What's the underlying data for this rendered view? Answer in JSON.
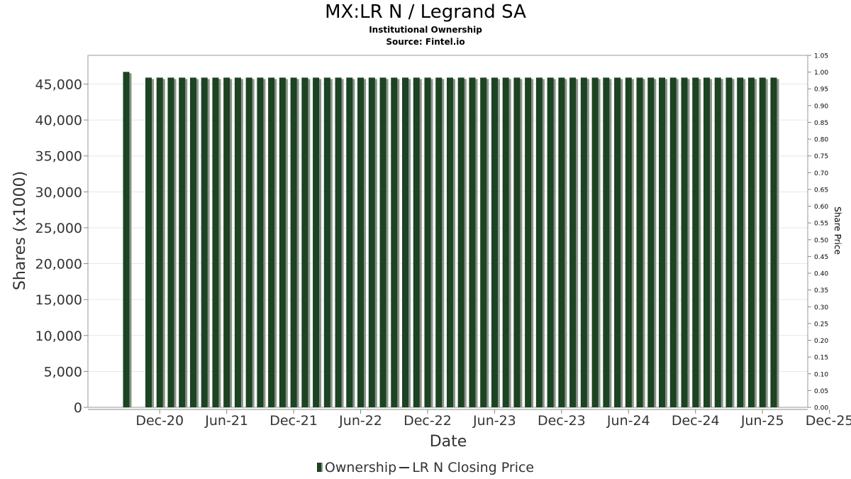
{
  "header": {
    "title": "MX:LR N / Legrand SA",
    "subtitle": "Institutional Ownership",
    "source": "Source: Fintel.io"
  },
  "legend": {
    "ownership": "Ownership",
    "price": "LR N Closing Price"
  },
  "colors": {
    "bar": "#1c4322",
    "bar_shadow": "#8a948a",
    "grid": "#e6e6e6",
    "axis": "#888888"
  },
  "chart_data": {
    "type": "bar",
    "xlabel": "Date",
    "ylabel": "Shares (x1000)",
    "y2label": "Share Price",
    "ylim": [
      0,
      49000
    ],
    "y2lim": [
      0,
      1.05
    ],
    "yticks": [
      "0",
      "5,000",
      "10,000",
      "15,000",
      "20,000",
      "25,000",
      "30,000",
      "35,000",
      "40,000",
      "45,000"
    ],
    "y2ticks": [
      "0.00",
      "0.05",
      "0.10",
      "0.15",
      "0.20",
      "0.25",
      "0.30",
      "0.35",
      "0.40",
      "0.45",
      "0.50",
      "0.55",
      "0.60",
      "0.65",
      "0.70",
      "0.75",
      "0.80",
      "0.85",
      "0.90",
      "0.95",
      "1.00",
      "1.05"
    ],
    "xticks": [
      "Dec-20",
      "Jun-21",
      "Dec-21",
      "Jun-22",
      "Dec-22",
      "Jun-23",
      "Dec-23",
      "Jun-24",
      "Dec-24",
      "Jun-25",
      "Dec-25"
    ],
    "grid": true,
    "legend_position": "bottom",
    "series": [
      {
        "name": "Ownership",
        "x_start": "2020-09",
        "x_step": "1 month",
        "values": [
          46700,
          null,
          45900,
          45900,
          45900,
          45900,
          45900,
          45900,
          45900,
          45900,
          45900,
          45900,
          45900,
          45900,
          45900,
          45900,
          45900,
          45900,
          45900,
          45900,
          45900,
          45900,
          45900,
          45900,
          45900,
          45900,
          45900,
          45900,
          45900,
          45900,
          45900,
          45900,
          45900,
          45900,
          45900,
          45900,
          45900,
          45900,
          45900,
          45900,
          45900,
          45900,
          45900,
          45900,
          45900,
          45900,
          45900,
          45900,
          45900,
          45900,
          45900,
          45900,
          45900,
          45900,
          45900,
          45900,
          45900,
          45900,
          45900
        ]
      },
      {
        "name": "LR N Closing Price",
        "values": []
      }
    ]
  }
}
